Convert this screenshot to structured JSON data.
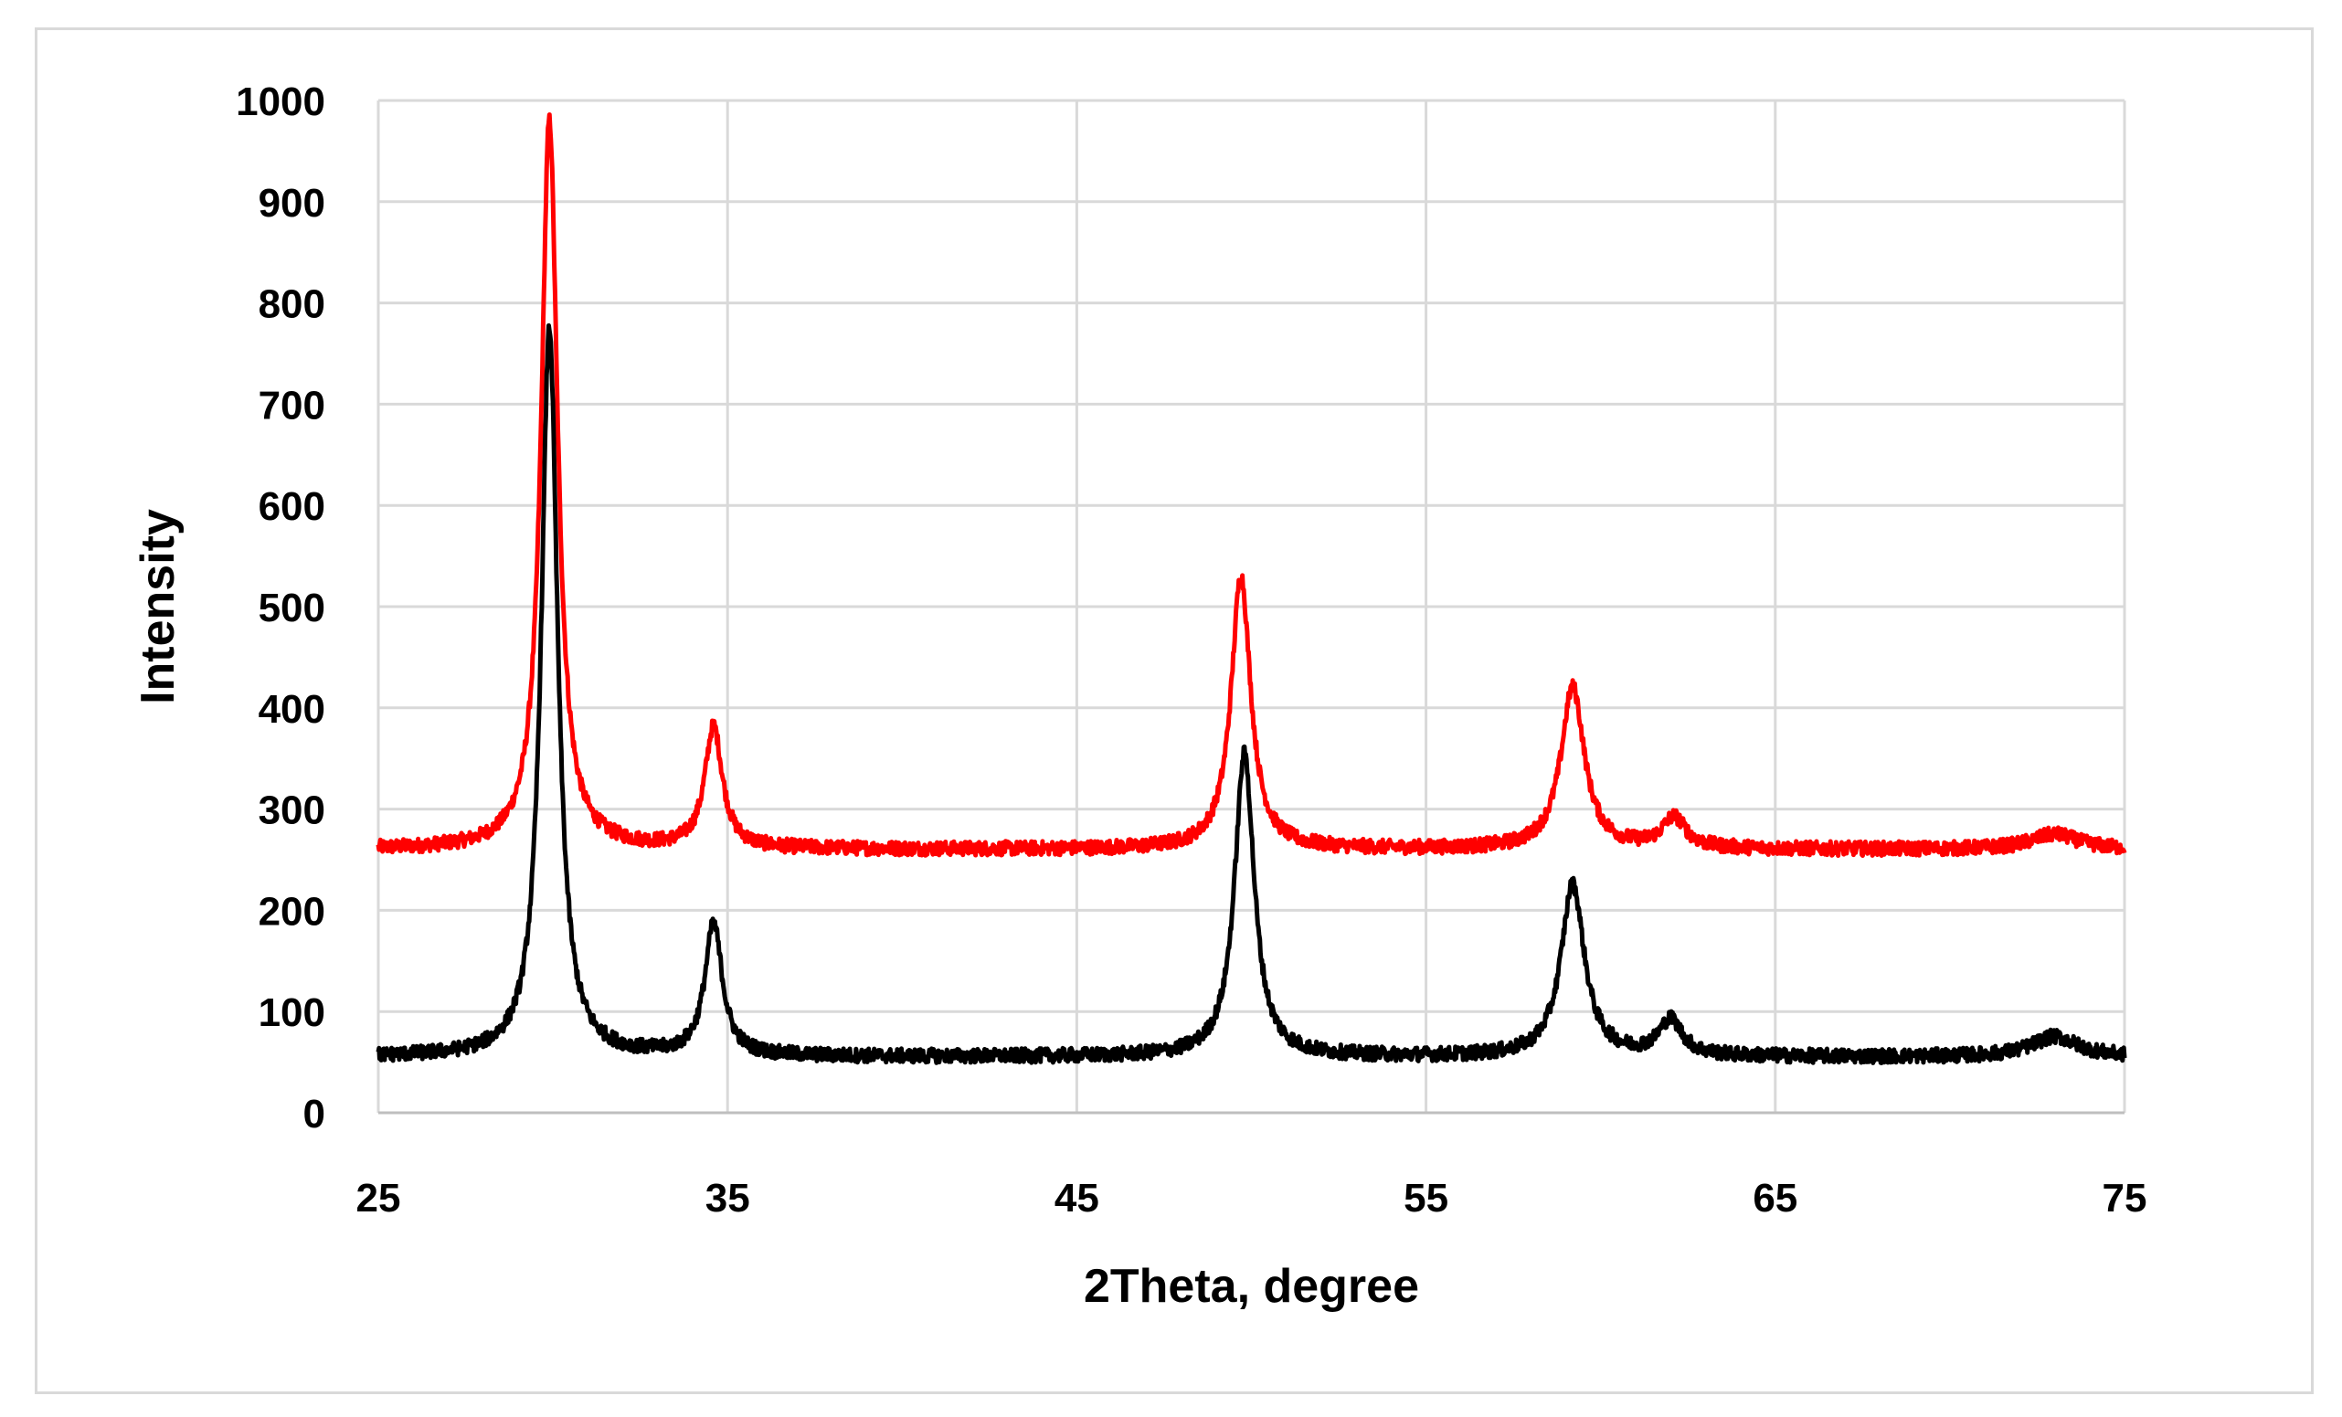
{
  "chart_data": {
    "type": "line",
    "title": "",
    "xlabel": "2Theta, degree",
    "ylabel": "Intensity",
    "xlim": [
      25,
      75
    ],
    "ylim": [
      0,
      1000
    ],
    "xticks": [
      25,
      35,
      45,
      55,
      65,
      75
    ],
    "xtick_labels": [
      "25",
      "35",
      "45",
      "55",
      "65",
      "75"
    ],
    "yticks": [
      0,
      100,
      200,
      300,
      400,
      500,
      600,
      700,
      800,
      900,
      1000
    ],
    "ytick_labels": [
      "0",
      "100",
      "200",
      "300",
      "400",
      "500",
      "600",
      "700",
      "800",
      "900",
      "1000"
    ],
    "grid": true,
    "legend": "none",
    "series": [
      {
        "color": "#ff0000",
        "baseline": 260,
        "noise": 7,
        "peaks": [
          [
            29.9,
            720,
            0.42
          ],
          [
            34.6,
            120,
            0.45
          ],
          [
            49.7,
            270,
            0.5
          ],
          [
            59.2,
            160,
            0.6
          ],
          [
            62.1,
            30,
            0.6
          ],
          [
            73.0,
            15,
            1.2
          ]
        ]
      },
      {
        "color": "#000000",
        "baseline": 55,
        "noise": 7,
        "peaks": [
          [
            29.9,
            720,
            0.42
          ],
          [
            34.6,
            130,
            0.45
          ],
          [
            49.8,
            300,
            0.5
          ],
          [
            59.2,
            170,
            0.6
          ],
          [
            62.0,
            35,
            0.6
          ],
          [
            73.0,
            20,
            1.2
          ]
        ]
      }
    ]
  }
}
